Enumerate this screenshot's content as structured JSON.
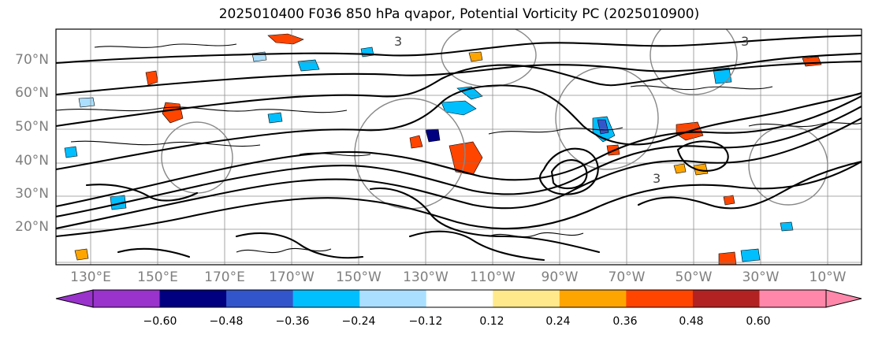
{
  "title": "2025010400 F036 850 hPa qvapor, Potential Vorticity PC (2025010900)",
  "latitude_labels": [
    "70°N",
    "60°N",
    "50°N",
    "40°N",
    "30°N",
    "20°N"
  ],
  "longitude_labels": [
    "130°E",
    "150°E",
    "170°E",
    "170°W",
    "150°W",
    "130°W",
    "110°W",
    "90°W",
    "70°W",
    "50°W",
    "30°W",
    "10°W"
  ],
  "colorbar": {
    "ticks": [
      "−0.60",
      "−0.48",
      "−0.36",
      "−0.24",
      "−0.12",
      "0.12",
      "0.24",
      "0.36",
      "0.48",
      "0.60"
    ],
    "colors": [
      "#9933cc",
      "#000080",
      "#3355cc",
      "#00bfff",
      "#aadfff",
      "#ffffff",
      "#ffe98a",
      "#ffa500",
      "#ff4500",
      "#b22222",
      "#ff88aa",
      "#ff88aa"
    ]
  },
  "contour_labels": [
    "3",
    "3",
    "3"
  ]
}
